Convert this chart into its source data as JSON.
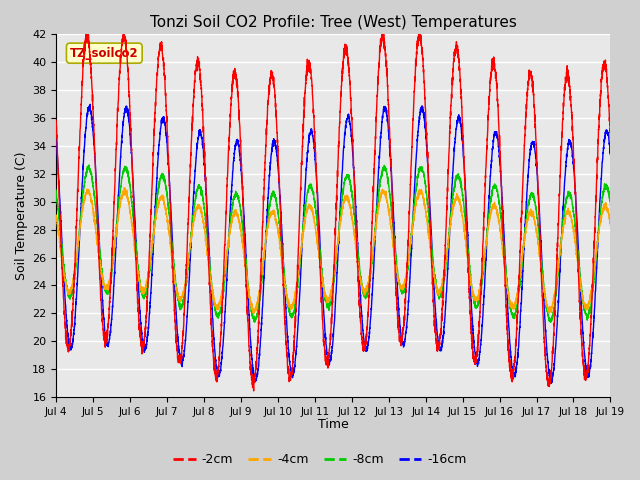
{
  "title": "Tonzi Soil CO2 Profile: Tree (West) Temperatures",
  "xlabel": "Time",
  "ylabel": "Soil Temperature (C)",
  "ylim": [
    16,
    42
  ],
  "yticks": [
    16,
    18,
    20,
    22,
    24,
    26,
    28,
    30,
    32,
    34,
    36,
    38,
    40,
    42
  ],
  "xlim_days": 15,
  "start_day": 4,
  "series_labels": [
    "-2cm",
    "-4cm",
    "-8cm",
    "-16cm"
  ],
  "series_colors": [
    "#ff0000",
    "#ffa500",
    "#00cc00",
    "#0000ff"
  ],
  "legend_title": "TZ_soilco2",
  "legend_title_color": "#cc0000",
  "legend_box_facecolor": "#ffffcc",
  "legend_box_edgecolor": "#aaaa00",
  "bg_color": "#d0d0d0",
  "plot_bg_color": "#e8e8e8",
  "figsize": [
    6.4,
    4.8
  ],
  "dpi": 100
}
